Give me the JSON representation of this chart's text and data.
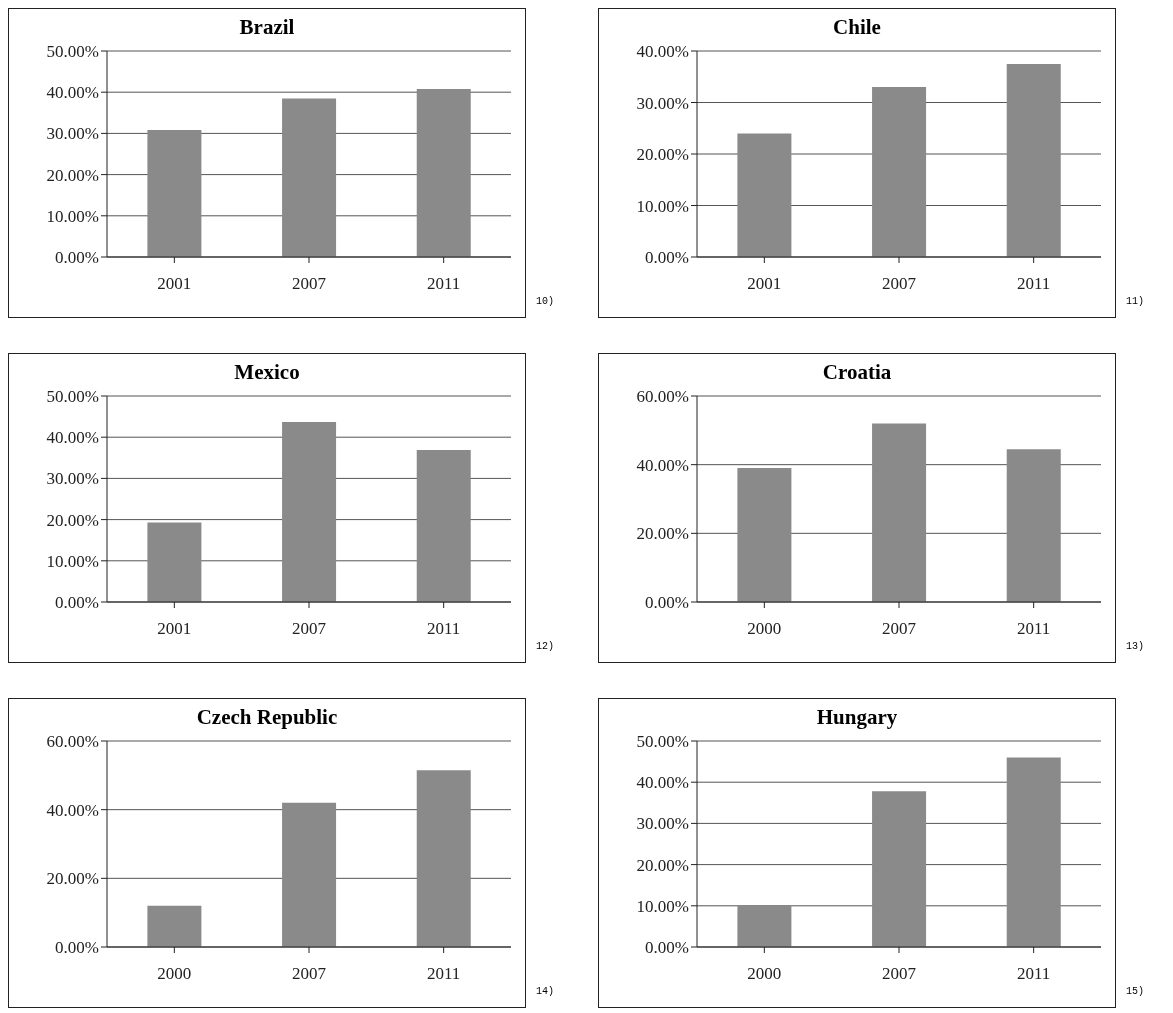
{
  "chart_data": [
    {
      "type": "bar",
      "title": "Brazil",
      "categories": [
        "2001",
        "2007",
        "2011"
      ],
      "values": [
        30.8,
        38.5,
        40.8
      ],
      "color": "#8a8a8a",
      "ylim": [
        0,
        50
      ],
      "yticks": [
        {
          "value": 0,
          "label": "0.00%"
        },
        {
          "value": 10,
          "label": "10.00%"
        },
        {
          "value": 20,
          "label": "20.00%"
        },
        {
          "value": 30,
          "label": "30.00%"
        },
        {
          "value": 40,
          "label": "40.00%"
        },
        {
          "value": 50,
          "label": "50.00%"
        }
      ],
      "grid": "y",
      "legend": false,
      "annotations": [
        "10)"
      ]
    },
    {
      "type": "bar",
      "title": "Chile",
      "categories": [
        "2001",
        "2007",
        "2011"
      ],
      "values": [
        24,
        33,
        37.5
      ],
      "color": "#8a8a8a",
      "ylim": [
        0,
        40
      ],
      "yticks": [
        {
          "value": 0,
          "label": "0.00%"
        },
        {
          "value": 10,
          "label": "10.00%"
        },
        {
          "value": 20,
          "label": "20.00%"
        },
        {
          "value": 30,
          "label": "30.00%"
        },
        {
          "value": 40,
          "label": "40.00%"
        }
      ],
      "grid": "y",
      "legend": false,
      "annotations": [
        "11)"
      ]
    },
    {
      "type": "bar",
      "title": "Mexico",
      "categories": [
        "2001",
        "2007",
        "2011"
      ],
      "values": [
        19.3,
        43.7,
        36.9
      ],
      "color": "#8a8a8a",
      "ylim": [
        0,
        50
      ],
      "yticks": [
        {
          "value": 0,
          "label": "0.00%"
        },
        {
          "value": 10,
          "label": "10.00%"
        },
        {
          "value": 20,
          "label": "20.00%"
        },
        {
          "value": 30,
          "label": "30.00%"
        },
        {
          "value": 40,
          "label": "40.00%"
        },
        {
          "value": 50,
          "label": "50.00%"
        }
      ],
      "grid": "y",
      "legend": false,
      "annotations": [
        "12)"
      ]
    },
    {
      "type": "bar",
      "title": "Croatia",
      "categories": [
        "2000",
        "2007",
        "2011"
      ],
      "values": [
        39,
        52,
        44.5
      ],
      "color": "#8a8a8a",
      "ylim": [
        0,
        60
      ],
      "yticks": [
        {
          "value": 0,
          "label": "0.00%"
        },
        {
          "value": 20,
          "label": "20.00%"
        },
        {
          "value": 40,
          "label": "40.00%"
        },
        {
          "value": 60,
          "label": "60.00%"
        }
      ],
      "grid": "y",
      "legend": false,
      "annotations": [
        "13)"
      ]
    },
    {
      "type": "bar",
      "title": "Czech Republic",
      "categories": [
        "2000",
        "2007",
        "2011"
      ],
      "values": [
        12,
        42,
        51.5
      ],
      "color": "#8a8a8a",
      "ylim": [
        0,
        60
      ],
      "yticks": [
        {
          "value": 0,
          "label": "0.00%"
        },
        {
          "value": 20,
          "label": "20.00%"
        },
        {
          "value": 40,
          "label": "40.00%"
        },
        {
          "value": 60,
          "label": "60.00%"
        }
      ],
      "grid": "y",
      "legend": false,
      "annotations": [
        "14)"
      ]
    },
    {
      "type": "bar",
      "title": "Hungary",
      "categories": [
        "2000",
        "2007",
        "2011"
      ],
      "values": [
        10,
        37.8,
        46
      ],
      "color": "#8a8a8a",
      "ylim": [
        0,
        50
      ],
      "yticks": [
        {
          "value": 0,
          "label": "0.00%"
        },
        {
          "value": 10,
          "label": "10.00%"
        },
        {
          "value": 20,
          "label": "20.00%"
        },
        {
          "value": 30,
          "label": "30.00%"
        },
        {
          "value": 40,
          "label": "40.00%"
        },
        {
          "value": 50,
          "label": "50.00%"
        }
      ],
      "grid": "y",
      "legend": false,
      "annotations": [
        "15)"
      ]
    }
  ]
}
